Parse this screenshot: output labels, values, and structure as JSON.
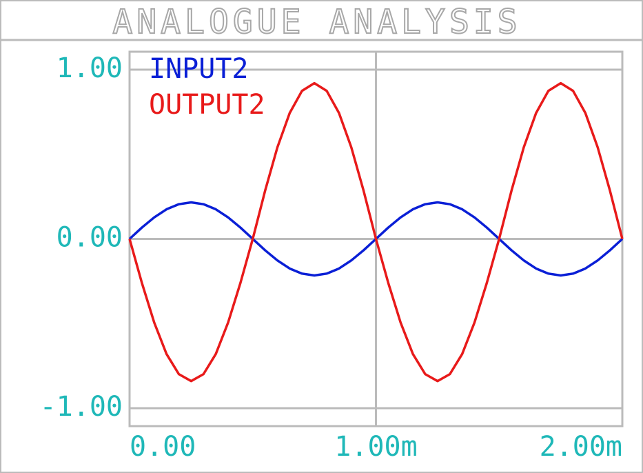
{
  "chart_data": {
    "type": "line",
    "title": "ANALOGUE ANALYSIS",
    "x": [
      0,
      5e-05,
      0.0001,
      0.00015,
      0.0002,
      0.00025,
      0.0003,
      0.00035,
      0.0004,
      0.00045,
      0.0005,
      0.00055,
      0.0006,
      0.00065,
      0.0007,
      0.00075,
      0.0008,
      0.00085,
      0.0009,
      0.00095,
      0.001,
      0.00105,
      0.0011,
      0.00115,
      0.0012,
      0.00125,
      0.0013,
      0.00135,
      0.0014,
      0.00145,
      0.0015,
      0.00155,
      0.0016,
      0.00165,
      0.0017,
      0.00175,
      0.0018,
      0.00185,
      0.0019,
      0.00195,
      0.002
    ],
    "series": [
      {
        "name": "INPUT2",
        "color": "#0a1fd6",
        "values": [
          0,
          0.067,
          0.127,
          0.175,
          0.205,
          0.216,
          0.205,
          0.175,
          0.127,
          0.067,
          0,
          -0.067,
          -0.127,
          -0.175,
          -0.205,
          -0.216,
          -0.205,
          -0.175,
          -0.127,
          -0.067,
          0,
          0.067,
          0.127,
          0.175,
          0.205,
          0.216,
          0.205,
          0.175,
          0.127,
          0.067,
          0,
          -0.067,
          -0.127,
          -0.175,
          -0.205,
          -0.216,
          -0.205,
          -0.175,
          -0.127,
          -0.067,
          0
        ]
      },
      {
        "name": "OUTPUT2",
        "color": "#e81a1a",
        "values": [
          0,
          -0.26,
          -0.494,
          -0.68,
          -0.799,
          -0.84,
          -0.799,
          -0.68,
          -0.494,
          -0.26,
          0,
          0.284,
          0.541,
          0.744,
          0.875,
          0.92,
          0.875,
          0.744,
          0.541,
          0.284,
          0,
          -0.26,
          -0.494,
          -0.68,
          -0.799,
          -0.84,
          -0.799,
          -0.68,
          -0.494,
          -0.26,
          0,
          0.284,
          0.541,
          0.744,
          0.875,
          0.92,
          0.875,
          0.744,
          0.541,
          0.284,
          0
        ]
      }
    ],
    "xlim": [
      0,
      0.002
    ],
    "xticks": [
      {
        "value": 0,
        "label": "0.00"
      },
      {
        "value": 0.001,
        "label": "1.00m"
      },
      {
        "value": 0.002,
        "label": "2.00m"
      }
    ],
    "ylim": [
      -1.106,
      1.106
    ],
    "yticks": [
      {
        "value": -1,
        "label": "-1.00"
      },
      {
        "value": 0,
        "label": "0.00"
      },
      {
        "value": 1,
        "label": "1.00"
      }
    ],
    "grid": true
  }
}
